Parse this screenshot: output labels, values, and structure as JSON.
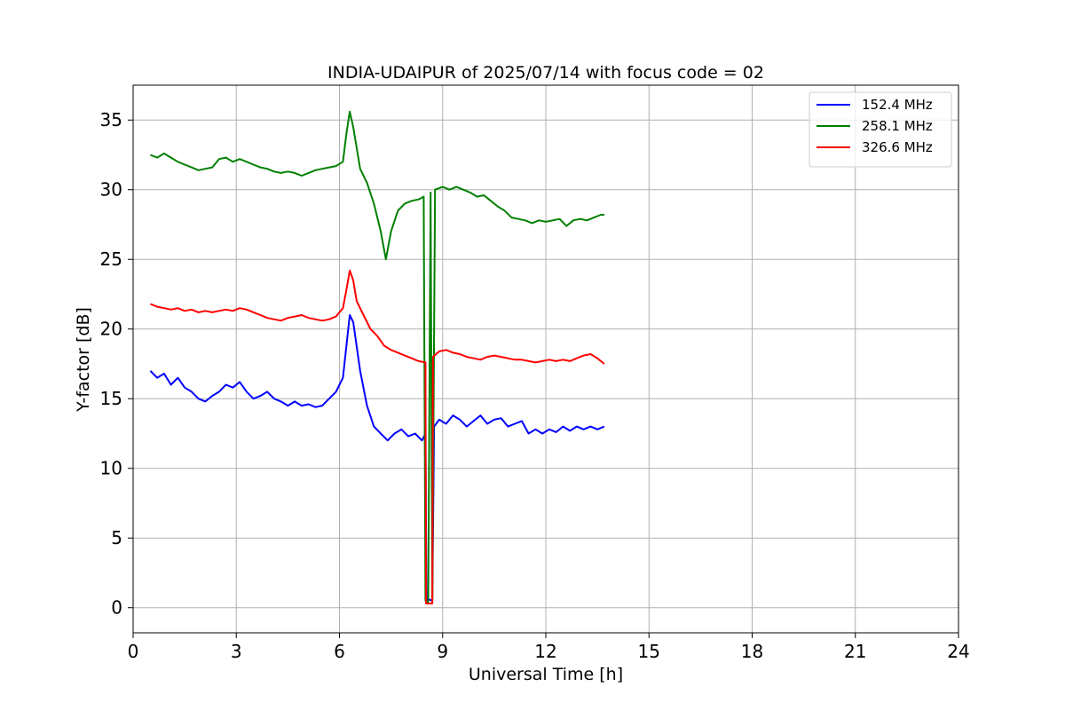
{
  "chart_data": {
    "type": "line",
    "title": "INDIA-UDAIPUR of 2025/07/14 with focus code = 02",
    "xlabel": "Universal Time [h]",
    "ylabel": "Y-factor [dB]",
    "xlim": [
      0,
      24
    ],
    "ylim": [
      -1.8,
      37.5
    ],
    "x_ticks": [
      0,
      3,
      6,
      9,
      12,
      15,
      18,
      21,
      24
    ],
    "y_ticks": [
      0,
      5,
      10,
      15,
      20,
      25,
      30,
      35
    ],
    "x_tick_labels": [
      "0",
      "3",
      "6",
      "9",
      "12",
      "15",
      "18",
      "21",
      "24"
    ],
    "y_tick_labels": [
      "0",
      "5",
      "10",
      "15",
      "20",
      "25",
      "30",
      "35"
    ],
    "grid": true,
    "legend_position": "top-right",
    "series": [
      {
        "name": "152.4 MHz",
        "color": "#0000ff",
        "points": [
          [
            0.5,
            17.0
          ],
          [
            0.7,
            16.5
          ],
          [
            0.9,
            16.8
          ],
          [
            1.1,
            16.0
          ],
          [
            1.3,
            16.5
          ],
          [
            1.5,
            15.8
          ],
          [
            1.7,
            15.5
          ],
          [
            1.9,
            15.0
          ],
          [
            2.1,
            14.8
          ],
          [
            2.3,
            15.2
          ],
          [
            2.5,
            15.5
          ],
          [
            2.7,
            16.0
          ],
          [
            2.9,
            15.8
          ],
          [
            3.1,
            16.2
          ],
          [
            3.3,
            15.5
          ],
          [
            3.5,
            15.0
          ],
          [
            3.7,
            15.2
          ],
          [
            3.9,
            15.5
          ],
          [
            4.1,
            15.0
          ],
          [
            4.3,
            14.8
          ],
          [
            4.5,
            14.5
          ],
          [
            4.7,
            14.8
          ],
          [
            4.9,
            14.5
          ],
          [
            5.1,
            14.6
          ],
          [
            5.3,
            14.4
          ],
          [
            5.5,
            14.5
          ],
          [
            5.7,
            15.0
          ],
          [
            5.9,
            15.5
          ],
          [
            6.1,
            16.5
          ],
          [
            6.3,
            21.0
          ],
          [
            6.4,
            20.5
          ],
          [
            6.6,
            17.0
          ],
          [
            6.8,
            14.5
          ],
          [
            7.0,
            13.0
          ],
          [
            7.2,
            12.5
          ],
          [
            7.4,
            12.0
          ],
          [
            7.6,
            12.5
          ],
          [
            7.8,
            12.8
          ],
          [
            8.0,
            12.3
          ],
          [
            8.2,
            12.5
          ],
          [
            8.4,
            12.0
          ],
          [
            8.5,
            12.5
          ],
          [
            8.53,
            0.5
          ],
          [
            8.6,
            0.6
          ],
          [
            8.7,
            0.5
          ],
          [
            8.75,
            13.0
          ],
          [
            8.9,
            13.5
          ],
          [
            9.1,
            13.2
          ],
          [
            9.3,
            13.8
          ],
          [
            9.5,
            13.5
          ],
          [
            9.7,
            13.0
          ],
          [
            9.9,
            13.4
          ],
          [
            10.1,
            13.8
          ],
          [
            10.3,
            13.2
          ],
          [
            10.5,
            13.5
          ],
          [
            10.7,
            13.6
          ],
          [
            10.9,
            13.0
          ],
          [
            11.1,
            13.2
          ],
          [
            11.3,
            13.4
          ],
          [
            11.5,
            12.5
          ],
          [
            11.7,
            12.8
          ],
          [
            11.9,
            12.5
          ],
          [
            12.1,
            12.8
          ],
          [
            12.3,
            12.6
          ],
          [
            12.5,
            13.0
          ],
          [
            12.7,
            12.7
          ],
          [
            12.9,
            13.0
          ],
          [
            13.1,
            12.8
          ],
          [
            13.3,
            13.0
          ],
          [
            13.5,
            12.8
          ],
          [
            13.7,
            13.0
          ]
        ]
      },
      {
        "name": "258.1 MHz",
        "color": "#008000",
        "points": [
          [
            0.5,
            32.5
          ],
          [
            0.7,
            32.3
          ],
          [
            0.9,
            32.6
          ],
          [
            1.1,
            32.3
          ],
          [
            1.3,
            32.0
          ],
          [
            1.5,
            31.8
          ],
          [
            1.7,
            31.6
          ],
          [
            1.9,
            31.4
          ],
          [
            2.1,
            31.5
          ],
          [
            2.3,
            31.6
          ],
          [
            2.5,
            32.2
          ],
          [
            2.7,
            32.3
          ],
          [
            2.9,
            32.0
          ],
          [
            3.1,
            32.2
          ],
          [
            3.3,
            32.0
          ],
          [
            3.5,
            31.8
          ],
          [
            3.7,
            31.6
          ],
          [
            3.9,
            31.5
          ],
          [
            4.1,
            31.3
          ],
          [
            4.3,
            31.2
          ],
          [
            4.5,
            31.3
          ],
          [
            4.7,
            31.2
          ],
          [
            4.9,
            31.0
          ],
          [
            5.1,
            31.2
          ],
          [
            5.3,
            31.4
          ],
          [
            5.5,
            31.5
          ],
          [
            5.7,
            31.6
          ],
          [
            5.9,
            31.7
          ],
          [
            6.1,
            32.0
          ],
          [
            6.2,
            34.0
          ],
          [
            6.3,
            35.6
          ],
          [
            6.4,
            34.5
          ],
          [
            6.6,
            31.5
          ],
          [
            6.8,
            30.5
          ],
          [
            7.0,
            29.0
          ],
          [
            7.2,
            27.0
          ],
          [
            7.35,
            25.0
          ],
          [
            7.5,
            27.0
          ],
          [
            7.7,
            28.5
          ],
          [
            7.9,
            29.0
          ],
          [
            8.1,
            29.2
          ],
          [
            8.3,
            29.3
          ],
          [
            8.45,
            29.5
          ],
          [
            8.5,
            0.5
          ],
          [
            8.58,
            0.4
          ],
          [
            8.65,
            29.8
          ],
          [
            8.7,
            0.4
          ],
          [
            8.78,
            30.0
          ],
          [
            9.0,
            30.2
          ],
          [
            9.2,
            30.0
          ],
          [
            9.4,
            30.2
          ],
          [
            9.6,
            30.0
          ],
          [
            9.8,
            29.8
          ],
          [
            10.0,
            29.5
          ],
          [
            10.2,
            29.6
          ],
          [
            10.4,
            29.2
          ],
          [
            10.6,
            28.8
          ],
          [
            10.8,
            28.5
          ],
          [
            11.0,
            28.0
          ],
          [
            11.2,
            27.9
          ],
          [
            11.4,
            27.8
          ],
          [
            11.6,
            27.6
          ],
          [
            11.8,
            27.8
          ],
          [
            12.0,
            27.7
          ],
          [
            12.2,
            27.8
          ],
          [
            12.4,
            27.9
          ],
          [
            12.6,
            27.4
          ],
          [
            12.8,
            27.8
          ],
          [
            13.0,
            27.9
          ],
          [
            13.2,
            27.8
          ],
          [
            13.4,
            28.0
          ],
          [
            13.6,
            28.2
          ],
          [
            13.7,
            28.2
          ]
        ]
      },
      {
        "name": "326.6 MHz",
        "color": "#ff0000",
        "points": [
          [
            0.5,
            21.8
          ],
          [
            0.7,
            21.6
          ],
          [
            0.9,
            21.5
          ],
          [
            1.1,
            21.4
          ],
          [
            1.3,
            21.5
          ],
          [
            1.5,
            21.3
          ],
          [
            1.7,
            21.4
          ],
          [
            1.9,
            21.2
          ],
          [
            2.1,
            21.3
          ],
          [
            2.3,
            21.2
          ],
          [
            2.5,
            21.3
          ],
          [
            2.7,
            21.4
          ],
          [
            2.9,
            21.3
          ],
          [
            3.1,
            21.5
          ],
          [
            3.3,
            21.4
          ],
          [
            3.5,
            21.2
          ],
          [
            3.7,
            21.0
          ],
          [
            3.9,
            20.8
          ],
          [
            4.1,
            20.7
          ],
          [
            4.3,
            20.6
          ],
          [
            4.5,
            20.8
          ],
          [
            4.7,
            20.9
          ],
          [
            4.9,
            21.0
          ],
          [
            5.1,
            20.8
          ],
          [
            5.3,
            20.7
          ],
          [
            5.5,
            20.6
          ],
          [
            5.7,
            20.7
          ],
          [
            5.9,
            20.9
          ],
          [
            6.1,
            21.5
          ],
          [
            6.2,
            22.8
          ],
          [
            6.3,
            24.2
          ],
          [
            6.4,
            23.5
          ],
          [
            6.5,
            22.0
          ],
          [
            6.7,
            21.0
          ],
          [
            6.9,
            20.0
          ],
          [
            7.1,
            19.5
          ],
          [
            7.3,
            18.8
          ],
          [
            7.5,
            18.5
          ],
          [
            7.7,
            18.3
          ],
          [
            7.9,
            18.1
          ],
          [
            8.1,
            17.9
          ],
          [
            8.3,
            17.7
          ],
          [
            8.5,
            17.6
          ],
          [
            8.52,
            0.3
          ],
          [
            8.6,
            0.3
          ],
          [
            8.7,
            0.3
          ],
          [
            8.72,
            18.0
          ],
          [
            8.9,
            18.4
          ],
          [
            9.1,
            18.5
          ],
          [
            9.3,
            18.3
          ],
          [
            9.5,
            18.2
          ],
          [
            9.7,
            18.0
          ],
          [
            9.9,
            17.9
          ],
          [
            10.1,
            17.8
          ],
          [
            10.3,
            18.0
          ],
          [
            10.5,
            18.1
          ],
          [
            10.7,
            18.0
          ],
          [
            10.9,
            17.9
          ],
          [
            11.1,
            17.8
          ],
          [
            11.3,
            17.8
          ],
          [
            11.5,
            17.7
          ],
          [
            11.7,
            17.6
          ],
          [
            11.9,
            17.7
          ],
          [
            12.1,
            17.8
          ],
          [
            12.3,
            17.7
          ],
          [
            12.5,
            17.8
          ],
          [
            12.7,
            17.7
          ],
          [
            12.9,
            17.9
          ],
          [
            13.1,
            18.1
          ],
          [
            13.3,
            18.2
          ],
          [
            13.5,
            17.9
          ],
          [
            13.7,
            17.5
          ]
        ]
      }
    ]
  }
}
